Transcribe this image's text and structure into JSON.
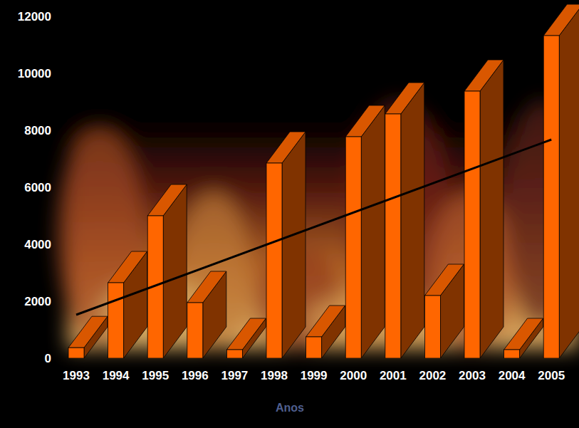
{
  "chart_data": {
    "type": "bar",
    "x_label": "Anos",
    "categories": [
      "1993",
      "1994",
      "1995",
      "1996",
      "1997",
      "1998",
      "1999",
      "2000",
      "2001",
      "2002",
      "2003",
      "2004",
      "2005"
    ],
    "values": [
      370,
      2650,
      5000,
      1950,
      300,
      6850,
      750,
      7775,
      8575,
      2200,
      9375,
      300,
      11325
    ],
    "color": "#ff6600",
    "trend_line": [
      1525,
      7675
    ],
    "ylim": [
      0,
      12000
    ],
    "yticks": [
      0,
      2000,
      4000,
      6000,
      8000,
      10000,
      12000
    ],
    "grid": false
  }
}
